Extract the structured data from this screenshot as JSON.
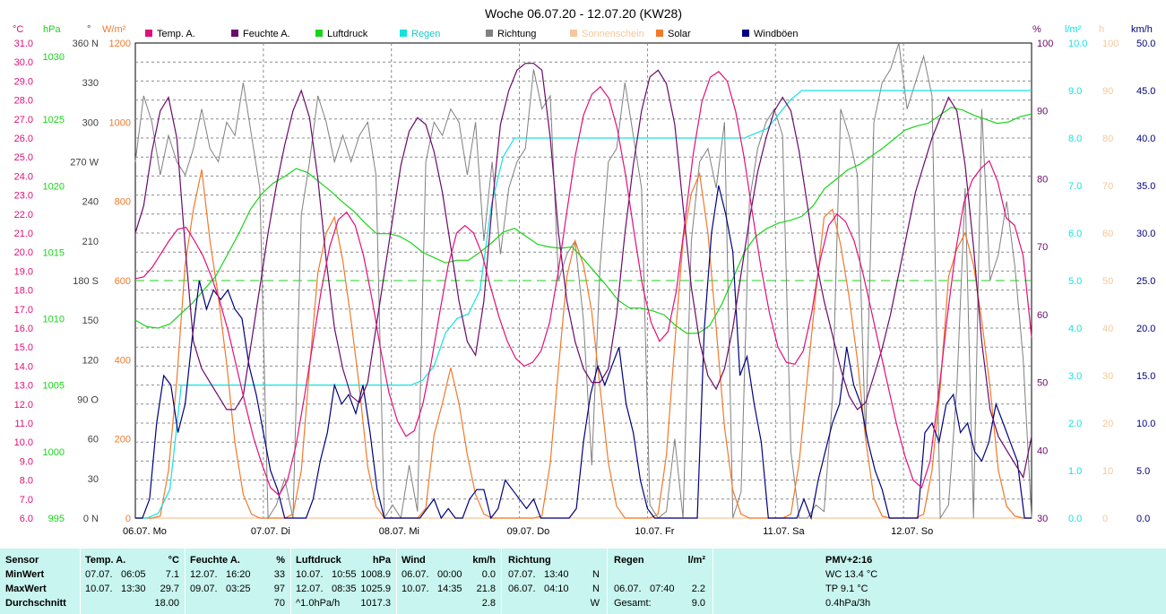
{
  "title": "Woche 06.07.20 - 12.07.20 (KW28)",
  "legend": [
    {
      "label": "Temp. A.",
      "color": "#e0107a"
    },
    {
      "label": "Feuchte A.",
      "color": "#6a0a6a"
    },
    {
      "label": "Luftdruck",
      "color": "#1ad41a"
    },
    {
      "label": "Regen",
      "color": "#18e0e0"
    },
    {
      "label": "Richtung",
      "color": "#808080"
    },
    {
      "label": "Sonnenschein",
      "color": "#f5c89a"
    },
    {
      "label": "Solar",
      "color": "#f07a2a"
    },
    {
      "label": "Windböen",
      "color": "#000080"
    }
  ],
  "chart_data": {
    "type": "line",
    "x_labels": [
      "06.07. Mo",
      "07.07. Di",
      "08.07. Mi",
      "09.07. Do",
      "10.07. Fr",
      "11.07. Sa",
      "12.07. So"
    ],
    "axes": {
      "temp": {
        "unit": "°C",
        "color": "#e0107a",
        "ticks": [
          "31.0",
          "30.0",
          "29.0",
          "28.0",
          "27.0",
          "26.0",
          "25.0",
          "24.0",
          "23.0",
          "22.0",
          "21.0",
          "20.0",
          "19.0",
          "18.0",
          "17.0",
          "16.0",
          "15.0",
          "14.0",
          "13.0",
          "12.0",
          "11.0",
          "10.0",
          "9.0",
          "8.0",
          "7.0",
          "6.0"
        ]
      },
      "pressure": {
        "unit": "hPa",
        "color": "#1ad41a",
        "ticks": [
          "1030",
          "1025",
          "1020",
          "1015",
          "1010",
          "1005",
          "1000",
          "995"
        ]
      },
      "direction": {
        "unit": "°",
        "color": "#404040",
        "ticks": [
          "360 N",
          "330",
          "300",
          "270 W",
          "240",
          "210",
          "180 S",
          "150",
          "120",
          "90 O",
          "60",
          "30",
          "0 N"
        ]
      },
      "solar": {
        "unit": "W/m²",
        "color": "#f07a2a",
        "ticks": [
          "1200",
          "1000",
          "800",
          "600",
          "400",
          "200",
          "0"
        ]
      },
      "humidity": {
        "unit": "%",
        "color": "#6a0a6a",
        "ticks": [
          "100",
          "90",
          "80",
          "70",
          "60",
          "50",
          "40",
          "30"
        ]
      },
      "rain": {
        "unit": "l/m²",
        "color": "#18e0e0",
        "ticks": [
          "10.0",
          "9.0",
          "8.0",
          "7.0",
          "6.0",
          "5.0",
          "4.0",
          "3.0",
          "2.0",
          "1.0",
          "0.0"
        ]
      },
      "sun": {
        "unit": "h",
        "color": "#f5c89a",
        "ticks": [
          "100",
          "90",
          "80",
          "70",
          "60",
          "50",
          "40",
          "30",
          "20",
          "10",
          "0"
        ]
      },
      "wind": {
        "unit": "km/h",
        "color": "#000080",
        "ticks": [
          "50.0",
          "45.0",
          "40.0",
          "35.0",
          "30.0",
          "25.0",
          "20.0",
          "15.0",
          "10.0",
          "5.0",
          "0.0"
        ]
      }
    },
    "series": [
      {
        "name": "Temp. A.",
        "unit": "°C",
        "values": [
          18.6,
          18.7,
          19.2,
          19.9,
          20.6,
          21.2,
          21.3,
          20.6,
          19.8,
          18.7,
          17.4,
          15.8,
          13.9,
          12.0,
          10.2,
          8.8,
          7.6,
          7.2,
          8.0,
          9.8,
          12.4,
          15.2,
          18.0,
          20.3,
          21.7,
          22.1,
          21.4,
          19.8,
          17.5,
          14.9,
          12.6,
          11.1,
          10.3,
          10.6,
          12.0,
          14.2,
          16.8,
          19.3,
          21.0,
          21.4,
          21.0,
          19.9,
          18.2,
          16.6,
          15.3,
          14.4,
          14.0,
          14.2,
          14.8,
          16.3,
          18.9,
          22.0,
          25.0,
          27.2,
          28.3,
          28.7,
          28.1,
          26.5,
          24.0,
          21.0,
          18.2,
          16.3,
          15.3,
          15.8,
          18.0,
          21.6,
          25.2,
          27.9,
          29.2,
          29.5,
          29.0,
          27.4,
          25.0,
          22.0,
          19.2,
          16.8,
          15.0,
          14.2,
          14.1,
          14.8,
          16.8,
          19.6,
          21.4,
          22.0,
          21.6,
          20.6,
          19.0,
          17.0,
          15.0,
          13.0,
          11.0,
          9.3,
          8.0,
          7.6,
          9.0,
          12.5,
          16.5,
          20.0,
          22.6,
          23.8,
          24.4,
          24.8,
          23.7,
          21.8,
          21.4,
          19.8,
          15.5
        ]
      },
      {
        "name": "Feuchte A.",
        "unit": "%",
        "values": [
          72,
          76,
          84,
          90,
          92,
          86,
          70,
          56,
          52,
          50,
          48,
          46,
          46,
          48,
          56,
          64,
          72,
          79,
          85,
          90,
          93,
          89,
          80,
          68,
          58,
          52,
          48,
          47,
          50,
          58,
          66,
          74,
          82,
          87,
          89,
          88,
          84,
          78,
          70,
          62,
          56,
          54,
          62,
          76,
          88,
          93,
          96,
          97,
          97,
          96,
          86,
          72,
          62,
          56,
          52,
          50,
          50,
          52,
          60,
          72,
          82,
          90,
          95,
          96,
          94,
          88,
          76,
          64,
          56,
          51,
          49,
          52,
          58,
          66,
          74,
          81,
          86,
          90,
          92,
          90,
          84,
          76,
          68,
          62,
          57,
          52,
          48,
          46,
          47,
          51,
          55,
          60,
          66,
          72,
          78,
          82,
          86,
          89,
          92,
          90,
          82,
          70,
          56,
          46,
          42,
          40,
          38,
          36,
          42
        ]
      },
      {
        "name": "Luftdruck",
        "unit": "hPa",
        "values": [
          1009.9,
          1009.4,
          1009.3,
          1009.6,
          1010.4,
          1011.2,
          1012.2,
          1013.2,
          1014.8,
          1016.4,
          1018.2,
          1019.4,
          1020.2,
          1020.7,
          1021.3,
          1021.0,
          1020.3,
          1019.6,
          1018.8,
          1018.1,
          1017.2,
          1016.4,
          1016.4,
          1016.2,
          1015.7,
          1015.0,
          1014.6,
          1014.2,
          1014.4,
          1014.4,
          1015.0,
          1015.7,
          1016.5,
          1016.8,
          1016.2,
          1015.6,
          1015.4,
          1015.3,
          1015.4,
          1014.5,
          1013.5,
          1012.5,
          1011.4,
          1010.8,
          1010.8,
          1010.6,
          1010.3,
          1009.5,
          1008.9,
          1008.9,
          1009.5,
          1011.0,
          1013.0,
          1015.0,
          1016.2,
          1016.8,
          1017.2,
          1017.4,
          1017.7,
          1018.5,
          1019.8,
          1020.5,
          1021.2,
          1021.6,
          1022.2,
          1022.8,
          1023.5,
          1024.2,
          1024.5,
          1024.7,
          1025.3,
          1025.9,
          1025.7,
          1025.3,
          1025.0,
          1024.7,
          1024.8,
          1025.2,
          1025.4
        ]
      },
      {
        "name": "Regen",
        "unit": "l/m²",
        "values": [
          0.0,
          0.0,
          0.1,
          0.6,
          2.8,
          2.8,
          2.8,
          2.8,
          2.8,
          2.8,
          2.8,
          2.8,
          2.8,
          2.8,
          2.8,
          2.8,
          2.8,
          2.8,
          2.8,
          2.8,
          2.8,
          2.8,
          2.8,
          2.8,
          2.8,
          2.9,
          3.2,
          3.9,
          4.2,
          4.3,
          4.8,
          6.6,
          7.6,
          8.0,
          8.0,
          8.0,
          8.0,
          8.0,
          8.0,
          8.0,
          8.0,
          8.0,
          8.0,
          8.0,
          8.0,
          8.0,
          8.0,
          8.0,
          8.0,
          8.0,
          8.0,
          8.0,
          8.0,
          8.0,
          8.1,
          8.2,
          8.5,
          8.8,
          9.0,
          9.0,
          9.0,
          9.0,
          9.0,
          9.0,
          9.0,
          9.0,
          9.0,
          9.0,
          9.0,
          9.0,
          9.0,
          9.0,
          9.0,
          9.0,
          9.0,
          9.0,
          9.0,
          9.0,
          9.0
        ]
      },
      {
        "name": "Richtung",
        "unit": "°",
        "values": [
          270,
          320,
          300,
          260,
          290,
          270,
          260,
          280,
          310,
          280,
          270,
          300,
          290,
          330,
          290,
          250,
          0,
          10,
          30,
          0,
          230,
          270,
          320,
          300,
          270,
          290,
          270,
          290,
          300,
          260,
          0,
          10,
          0,
          40,
          5,
          270,
          300,
          290,
          310,
          300,
          260,
          300,
          210,
          270,
          200,
          250,
          270,
          280,
          340,
          310,
          320,
          180,
          200,
          210,
          150,
          40,
          190,
          270,
          280,
          330,
          290,
          250,
          10,
          0,
          5,
          60,
          0,
          210,
          270,
          280,
          250,
          300,
          0,
          20,
          240,
          280,
          300,
          310,
          290,
          50,
          0,
          0,
          10,
          5,
          90,
          310,
          290,
          260,
          60,
          300,
          330,
          340,
          360,
          310,
          330,
          350,
          320,
          0,
          10,
          100,
          250,
          0,
          310,
          180,
          200,
          240,
          190,
          120,
          0
        ]
      },
      {
        "name": "Solar",
        "unit": "W/m²",
        "values": [
          0,
          0,
          0,
          5,
          120,
          350,
          640,
          780,
          880,
          700,
          560,
          390,
          190,
          60,
          10,
          0,
          0,
          0,
          0,
          10,
          120,
          380,
          620,
          720,
          760,
          650,
          500,
          330,
          130,
          30,
          0,
          0,
          0,
          0,
          0,
          25,
          210,
          290,
          380,
          290,
          160,
          60,
          10,
          0,
          0,
          0,
          0,
          0,
          0,
          5,
          140,
          380,
          610,
          700,
          640,
          520,
          330,
          140,
          30,
          0,
          0,
          0,
          0,
          10,
          160,
          440,
          700,
          820,
          870,
          720,
          480,
          230,
          70,
          10,
          0,
          0,
          0,
          0,
          0,
          10,
          140,
          360,
          570,
          760,
          780,
          690,
          560,
          400,
          200,
          50,
          5,
          0,
          0,
          0,
          0,
          10,
          120,
          330,
          610,
          680,
          720,
          640,
          500,
          330,
          120,
          30,
          5,
          0,
          0
        ]
      },
      {
        "name": "Sonnenschein",
        "unit": "h",
        "values": [
          0,
          0,
          0,
          0,
          0,
          0,
          0,
          0,
          0,
          0,
          0,
          0,
          0,
          0,
          0,
          0,
          0,
          0,
          0,
          0,
          0,
          0,
          0,
          0,
          0,
          0,
          0,
          0,
          0,
          0,
          0,
          0,
          0,
          0,
          0,
          0,
          0,
          0,
          0,
          0,
          0,
          0,
          0,
          0,
          0,
          0,
          0,
          0,
          0,
          0,
          0,
          0,
          0,
          0,
          0,
          0,
          0,
          0,
          0,
          0,
          0,
          0,
          0,
          0,
          0,
          0,
          0,
          0,
          0,
          0,
          0,
          0,
          0,
          0,
          0,
          0,
          0,
          0,
          0,
          0,
          0,
          0,
          0,
          0,
          0,
          0,
          0,
          0,
          0,
          0,
          0,
          0,
          0,
          0,
          0,
          0,
          0,
          0,
          0,
          0,
          0,
          0,
          0,
          0,
          0,
          0,
          0,
          0
        ]
      },
      {
        "name": "Windböen",
        "unit": "km/h",
        "values": [
          0,
          0,
          2,
          10,
          15,
          14,
          9,
          12,
          19,
          25,
          22,
          24,
          23,
          24,
          22,
          21,
          16,
          13,
          9,
          5,
          3,
          0,
          0,
          0,
          0,
          2,
          6,
          9,
          14,
          12,
          13,
          11,
          14,
          9,
          3,
          0,
          0,
          0,
          0,
          0,
          0,
          1,
          2,
          0,
          1,
          0,
          0,
          2,
          3,
          3,
          0,
          1,
          4,
          3,
          2,
          1,
          2,
          0,
          0,
          0,
          0,
          0,
          1,
          8,
          13,
          16,
          14,
          16,
          18,
          12,
          9,
          4,
          1,
          0,
          0,
          0,
          0,
          0,
          0,
          0,
          20,
          30,
          35,
          32,
          28,
          15,
          17,
          12,
          8,
          0,
          0,
          0,
          0,
          0,
          2,
          0,
          4,
          7,
          10,
          12,
          18,
          14,
          12,
          8,
          5,
          3,
          0,
          0,
          0,
          0,
          0,
          9,
          10,
          8,
          12,
          13,
          9,
          10,
          7,
          6,
          8,
          12,
          10,
          8,
          6,
          0,
          0
        ]
      }
    ]
  },
  "stats": {
    "sensor": {
      "header": "Sensor",
      "rows": [
        "MinWert",
        "MaxWert",
        "Durchschnitt"
      ]
    },
    "temp": {
      "header": "Temp. A.",
      "unit": "°C",
      "rows": [
        [
          "07.07.",
          "06:05",
          "7.1"
        ],
        [
          "10.07.",
          "13:30",
          "29.7"
        ],
        [
          "",
          "",
          "18.00"
        ]
      ]
    },
    "feuchte": {
      "header": "Feuchte A.",
      "unit": "%",
      "rows": [
        [
          "12.07.",
          "16:20",
          "33"
        ],
        [
          "09.07.",
          "03:25",
          "97"
        ],
        [
          "",
          "",
          "70"
        ]
      ]
    },
    "luftdruck": {
      "header": "Luftdruck",
      "unit": "hPa",
      "rows": [
        [
          "10.07.",
          "10:55",
          "1008.9"
        ],
        [
          "12.07.",
          "08:35",
          "1025.9"
        ],
        [
          "^1.0hPa/h",
          "",
          "1017.3"
        ]
      ]
    },
    "wind": {
      "header": "Wind",
      "unit": "km/h",
      "rows": [
        [
          "06.07.",
          "00:00",
          "0.0"
        ],
        [
          "10.07.",
          "14:35",
          "21.8"
        ],
        [
          "",
          "",
          "2.8"
        ]
      ]
    },
    "richtung": {
      "header": "Richtung",
      "unit": "",
      "rows": [
        [
          "07.07.",
          "13:40",
          "N"
        ],
        [
          "06.07.",
          "04:10",
          "N"
        ],
        [
          "",
          "",
          "W"
        ]
      ]
    },
    "regen": {
      "header": "Regen",
      "unit": "l/m²",
      "rows": [
        [
          "",
          "",
          ""
        ],
        [
          "06.07.",
          "07:40",
          "2.2"
        ],
        [
          "Gesamt:",
          "",
          "9.0"
        ]
      ]
    },
    "pmv": {
      "header": "PMV+2:16",
      "rows": [
        "WC 13.4 °C",
        "TP 9.1 °C",
        "0.4hPa/3h"
      ]
    }
  }
}
